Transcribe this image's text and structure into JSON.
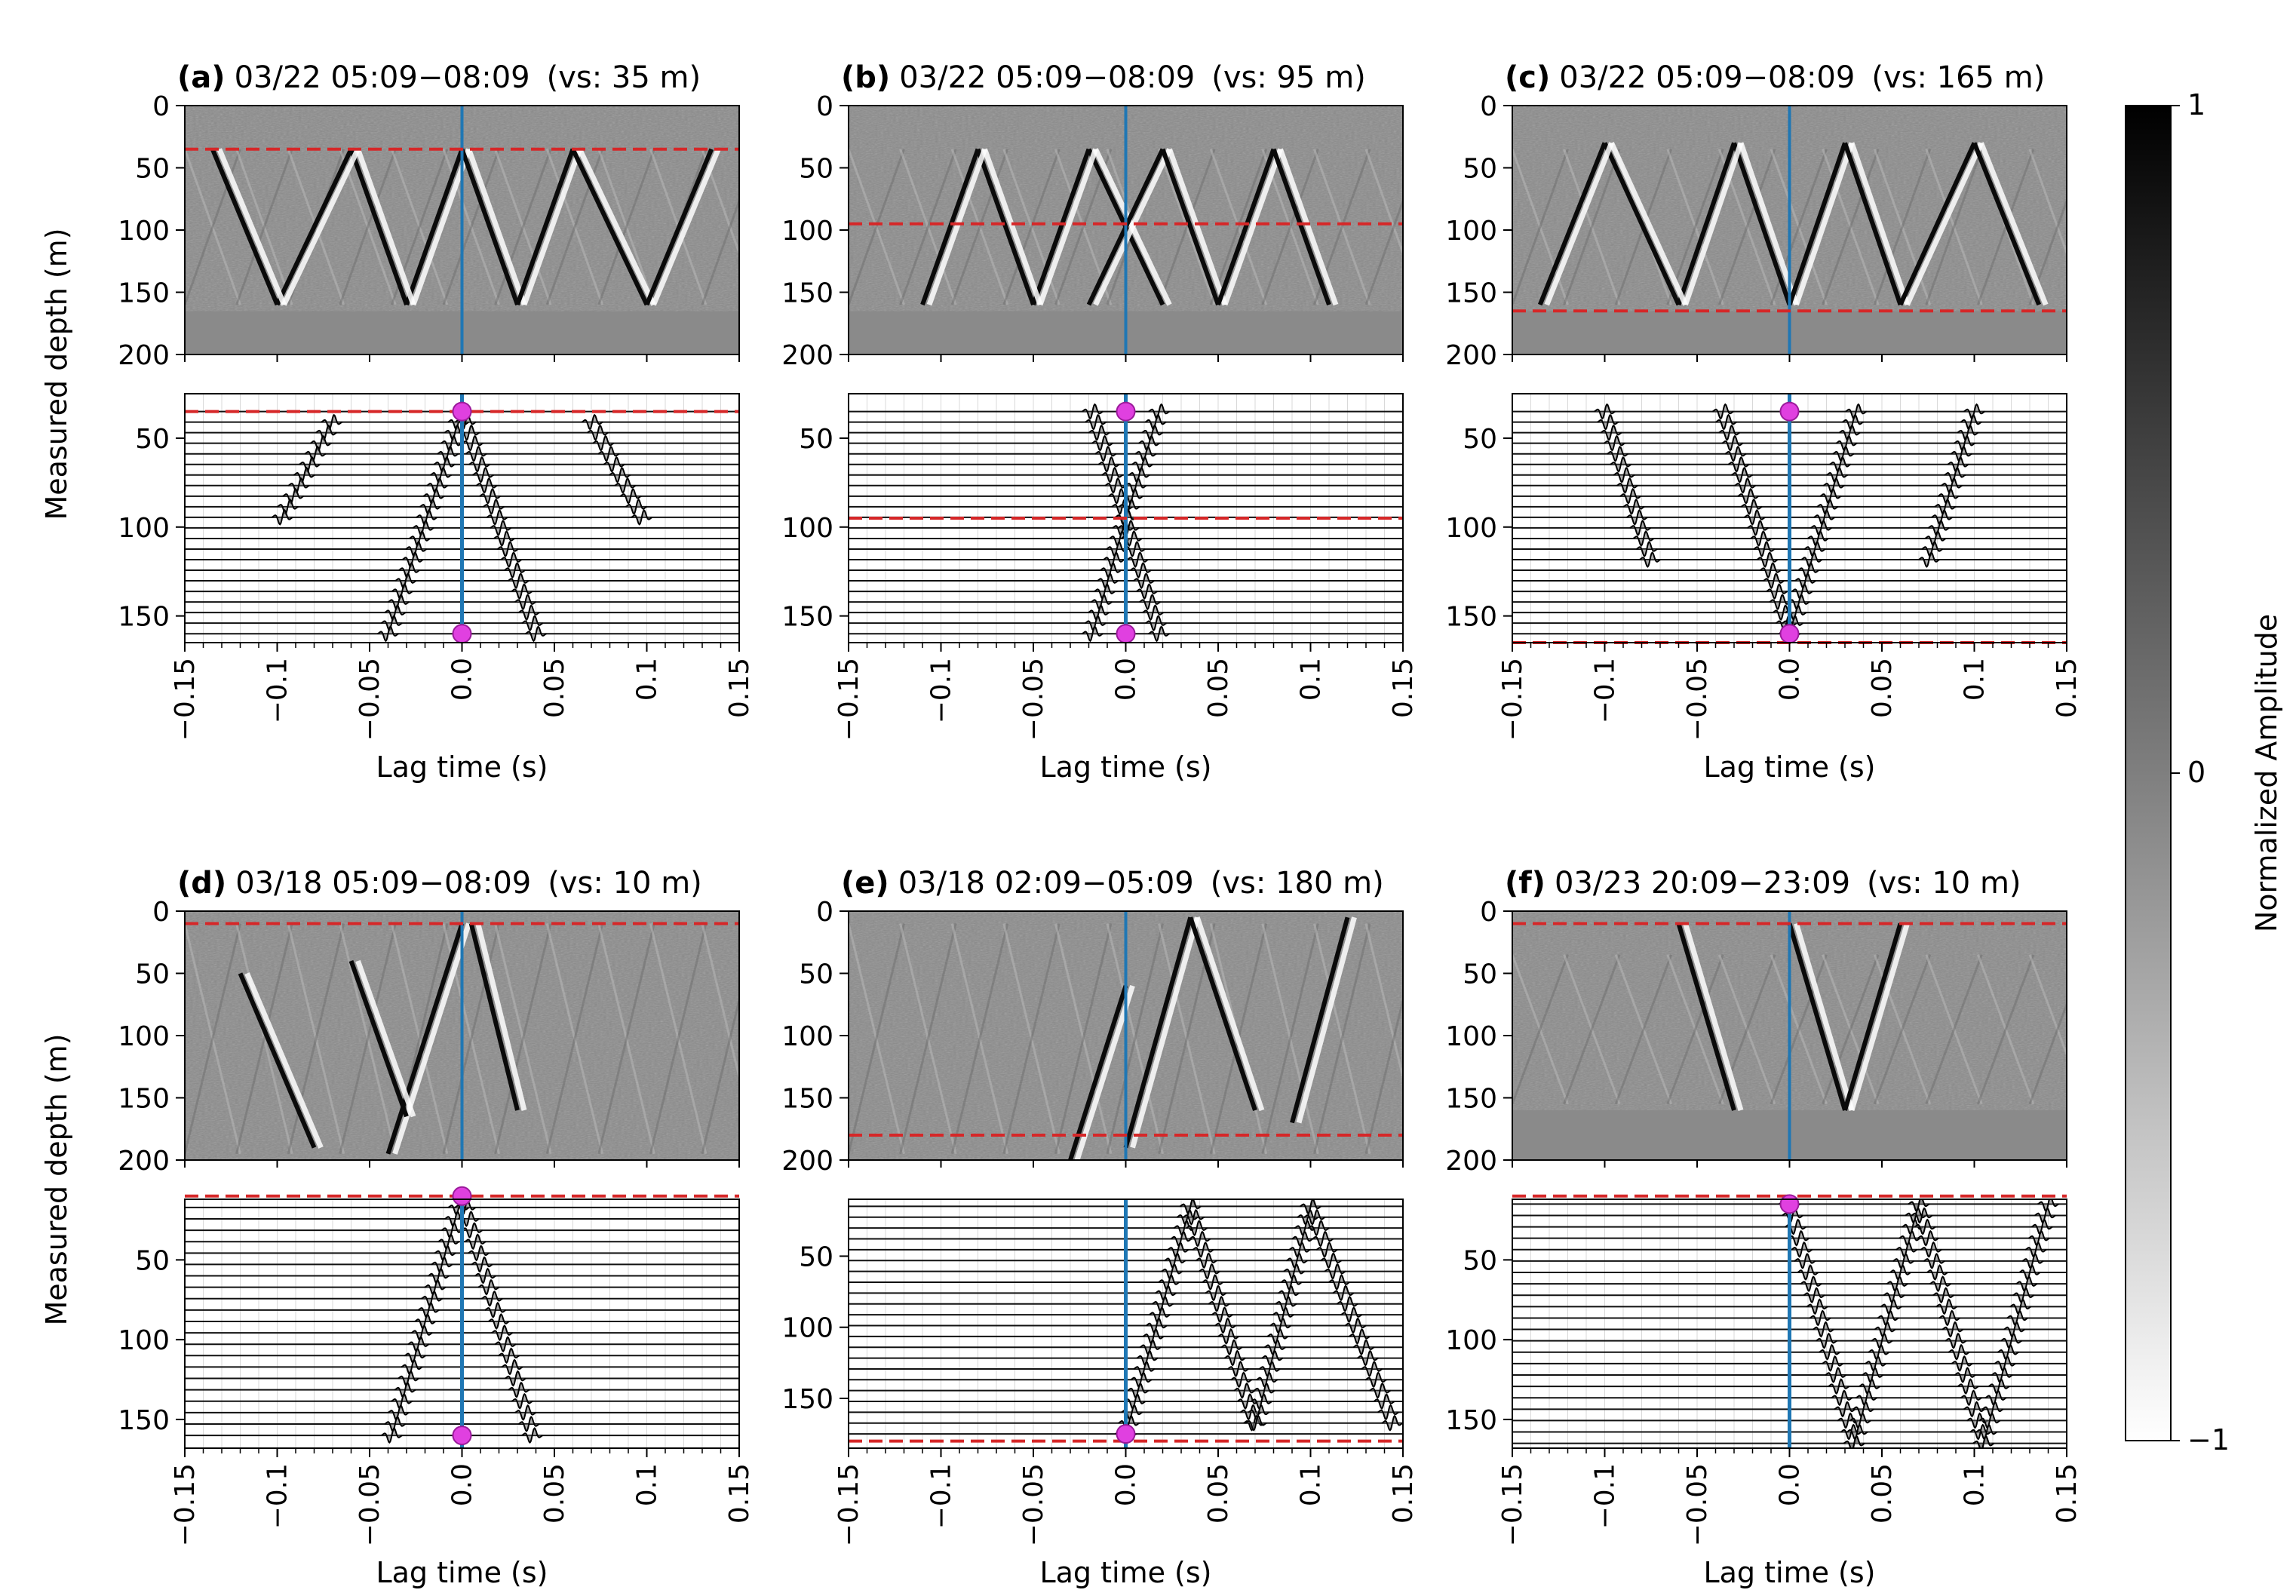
{
  "figure": {
    "colorbar_label": "Normalized Amplitude",
    "colorbar_ticks": [
      "1",
      "0",
      "−1"
    ],
    "y_label": "Measured depth (m)",
    "x_label": "Lag time (s)",
    "x_ticks": [
      "−0.15",
      "−0.1",
      "−0.05",
      "0.0",
      "0.05",
      "0.1",
      "0.15"
    ],
    "colors": {
      "virtual_source_line": "#d62728",
      "zero_lag_line": "#1f77b4",
      "marker": "#e040e0"
    }
  },
  "chart_data": [
    {
      "type": "heatmap",
      "panel": "a",
      "panel_letter": "(a)",
      "window": "03/22 05:09−08:09",
      "vs_label": "(vs: 35 m)",
      "virtual_source_depth": 35,
      "xlim": [
        -0.15,
        0.15
      ],
      "image_ylim": [
        200,
        0
      ],
      "image_yticks": [
        0,
        50,
        100,
        150,
        200
      ],
      "image_bottom_depth": 165,
      "image_arrivals": [
        [
          0,
          35,
          -0.03,
          160
        ],
        [
          0,
          35,
          0.03,
          160
        ],
        [
          -0.03,
          160,
          -0.06,
          35
        ],
        [
          0.03,
          160,
          0.06,
          35
        ],
        [
          -0.06,
          35,
          -0.1,
          160
        ],
        [
          0.06,
          35,
          0.1,
          160
        ],
        [
          -0.1,
          160,
          -0.135,
          35
        ],
        [
          0.1,
          160,
          0.135,
          35
        ]
      ],
      "wiggle_ylim": [
        165,
        25
      ],
      "wiggle_yticks": [
        50,
        100,
        150
      ],
      "wiggle_depth_range": [
        35,
        160
      ],
      "wiggle_arrivals": [
        [
          0,
          35,
          -0.04,
          160
        ],
        [
          0,
          35,
          0.04,
          160
        ],
        [
          -0.1,
          100,
          -0.07,
          40
        ],
        [
          0.07,
          40,
          0.1,
          100
        ]
      ],
      "markers": [
        35,
        160
      ]
    },
    {
      "type": "heatmap",
      "panel": "b",
      "panel_letter": "(b)",
      "window": "03/22 05:09−08:09",
      "vs_label": "(vs: 95 m)",
      "virtual_source_depth": 95,
      "xlim": [
        -0.15,
        0.15
      ],
      "image_ylim": [
        200,
        0
      ],
      "image_yticks": [
        0,
        50,
        100,
        150,
        200
      ],
      "image_bottom_depth": 165,
      "image_arrivals": [
        [
          -0.02,
          35,
          0.02,
          160
        ],
        [
          0.02,
          35,
          -0.02,
          160
        ],
        [
          -0.02,
          35,
          -0.05,
          160
        ],
        [
          0.02,
          35,
          0.05,
          160
        ],
        [
          -0.05,
          160,
          -0.08,
          35
        ],
        [
          0.05,
          160,
          0.08,
          35
        ],
        [
          -0.08,
          35,
          -0.11,
          160
        ],
        [
          0.08,
          35,
          0.11,
          160
        ]
      ],
      "wiggle_ylim": [
        165,
        25
      ],
      "wiggle_yticks": [
        50,
        100,
        150
      ],
      "wiggle_depth_range": [
        35,
        160
      ],
      "wiggle_arrivals": [
        [
          0,
          95,
          -0.018,
          35
        ],
        [
          0,
          95,
          0.018,
          35
        ],
        [
          0,
          95,
          -0.018,
          160
        ],
        [
          0,
          95,
          0.018,
          160
        ]
      ],
      "markers": [
        35,
        160
      ]
    },
    {
      "type": "heatmap",
      "panel": "c",
      "panel_letter": "(c)",
      "window": "03/22 05:09−08:09",
      "vs_label": "(vs: 165 m)",
      "virtual_source_depth": 165,
      "xlim": [
        -0.15,
        0.15
      ],
      "image_ylim": [
        200,
        0
      ],
      "image_yticks": [
        0,
        50,
        100,
        150,
        200
      ],
      "image_bottom_depth": 165,
      "image_arrivals": [
        [
          0,
          160,
          -0.03,
          30
        ],
        [
          0,
          160,
          0.03,
          30
        ],
        [
          -0.03,
          30,
          -0.06,
          160
        ],
        [
          0.03,
          30,
          0.06,
          160
        ],
        [
          -0.06,
          160,
          -0.1,
          30
        ],
        [
          0.06,
          160,
          0.1,
          30
        ],
        [
          -0.1,
          30,
          -0.135,
          160
        ],
        [
          0.1,
          30,
          0.135,
          160
        ]
      ],
      "wiggle_ylim": [
        165,
        25
      ],
      "wiggle_yticks": [
        50,
        100,
        150
      ],
      "wiggle_depth_range": [
        35,
        160
      ],
      "wiggle_arrivals": [
        [
          0,
          160,
          -0.036,
          35
        ],
        [
          0,
          160,
          0.036,
          35
        ],
        [
          -0.1,
          35,
          -0.075,
          120
        ],
        [
          0.075,
          120,
          0.1,
          35
        ]
      ],
      "markers": [
        35,
        160
      ]
    },
    {
      "type": "heatmap",
      "panel": "d",
      "panel_letter": "(d)",
      "window": "03/18 05:09−08:09",
      "vs_label": "(vs: 10 m)",
      "virtual_source_depth": 10,
      "xlim": [
        -0.15,
        0.15
      ],
      "image_ylim": [
        200,
        0
      ],
      "image_yticks": [
        0,
        50,
        100,
        150,
        200
      ],
      "image_bottom_depth": 200,
      "image_arrivals": [
        [
          0,
          10,
          -0.04,
          195
        ],
        [
          0.005,
          10,
          0.03,
          160
        ],
        [
          -0.06,
          40,
          -0.03,
          165
        ],
        [
          -0.12,
          50,
          -0.08,
          190
        ]
      ],
      "wiggle_ylim": [
        168,
        12
      ],
      "wiggle_yticks": [
        50,
        100,
        150
      ],
      "wiggle_depth_range": [
        10,
        160
      ],
      "wiggle_arrivals": [
        [
          0,
          10,
          -0.038,
          160
        ],
        [
          0,
          10,
          0.038,
          160
        ]
      ],
      "markers": [
        10,
        160
      ]
    },
    {
      "type": "heatmap",
      "panel": "e",
      "panel_letter": "(e)",
      "window": "03/18 02:09−05:09",
      "vs_label": "(vs: 180 m)",
      "virtual_source_depth": 180,
      "xlim": [
        -0.15,
        0.15
      ],
      "image_ylim": [
        200,
        0
      ],
      "image_yticks": [
        0,
        50,
        100,
        150,
        200
      ],
      "image_bottom_depth": 200,
      "image_arrivals": [
        [
          0,
          190,
          0.035,
          5
        ],
        [
          0.035,
          5,
          0.07,
          160
        ],
        [
          -0.03,
          200,
          0,
          60
        ],
        [
          0.09,
          170,
          0.12,
          5
        ]
      ],
      "wiggle_ylim": [
        185,
        10
      ],
      "wiggle_yticks": [
        50,
        100,
        150
      ],
      "wiggle_depth_range": [
        15,
        175
      ],
      "wiggle_arrivals": [
        [
          0,
          175,
          0.035,
          15
        ],
        [
          0.035,
          15,
          0.07,
          170
        ],
        [
          0.07,
          170,
          0.1,
          15
        ],
        [
          0.1,
          15,
          0.145,
          170
        ]
      ],
      "markers": [
        175
      ]
    },
    {
      "type": "heatmap",
      "panel": "f",
      "panel_letter": "(f)",
      "window": "03/23 20:09−23:09",
      "vs_label": "(vs: 10 m)",
      "virtual_source_depth": 10,
      "xlim": [
        -0.15,
        0.15
      ],
      "image_ylim": [
        200,
        0
      ],
      "image_yticks": [
        0,
        50,
        100,
        150,
        200
      ],
      "image_bottom_depth": 160,
      "image_arrivals": [
        [
          0,
          10,
          0.03,
          160
        ],
        [
          0.03,
          160,
          0.06,
          10
        ],
        [
          -0.06,
          10,
          -0.03,
          160
        ]
      ],
      "wiggle_ylim": [
        168,
        12
      ],
      "wiggle_yticks": [
        50,
        100,
        150
      ],
      "wiggle_depth_range": [
        15,
        165
      ],
      "wiggle_arrivals": [
        [
          0,
          15,
          0.035,
          165
        ],
        [
          0.035,
          165,
          0.07,
          15
        ],
        [
          0.07,
          15,
          0.105,
          165
        ],
        [
          0.105,
          165,
          0.14,
          15
        ]
      ],
      "markers": [
        15
      ]
    }
  ]
}
